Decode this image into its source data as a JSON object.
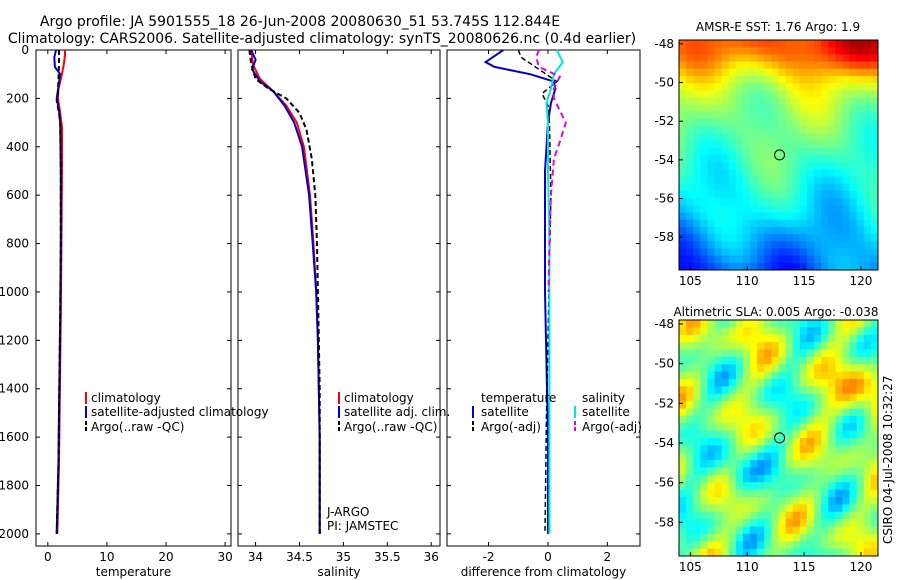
{
  "title": {
    "line1": "Argo profile: JA 5901555_18 26-Jun-2008 20080630_51 53.745S 112.844E",
    "line2": "Climatology: CARS2006. Satellite-adjusted climatology: synTS_20080626.nc (0.4d earlier)"
  },
  "footer": "CSIRO 04-Jul-2008 10:32:27",
  "colors": {
    "climatology": "#ff0000",
    "satellite": "#0000cc",
    "argo": "#000000",
    "sat_cyan": "#00e5e5",
    "argo_magenta": "#e600e6"
  },
  "chart_data": [
    {
      "type": "line",
      "name": "temperature-profile",
      "xlabel": "temperature",
      "xlim": [
        -2,
        31
      ],
      "ylim": [
        0,
        2050
      ],
      "y_reversed": true,
      "xticks": [
        "0",
        "10",
        "20",
        "30"
      ],
      "yticks": [
        "0",
        "200",
        "400",
        "600",
        "800",
        "1000",
        "1200",
        "1400",
        "1600",
        "1800",
        "2000"
      ],
      "legend": {
        "items": [
          "climatology",
          "satellite-adjusted climatology",
          "Argo(..raw -QC)"
        ]
      },
      "series": [
        {
          "name": "climatology",
          "color": "#ff0000",
          "dash": "",
          "points": [
            [
              2.9,
              0
            ],
            [
              2.9,
              20
            ],
            [
              2.7,
              60
            ],
            [
              2.3,
              110
            ],
            [
              1.8,
              160
            ],
            [
              1.7,
              200
            ],
            [
              2.1,
              260
            ],
            [
              2.4,
              320
            ],
            [
              2.4,
              500
            ],
            [
              2.3,
              800
            ],
            [
              2.2,
              1100
            ],
            [
              2.1,
              1300
            ],
            [
              2.0,
              1500
            ],
            [
              1.9,
              1700
            ],
            [
              1.7,
              1900
            ],
            [
              1.6,
              2000
            ]
          ]
        },
        {
          "name": "satellite-adjusted climatology",
          "color": "#0000cc",
          "dash": "",
          "points": [
            [
              1.4,
              0
            ],
            [
              1.1,
              30
            ],
            [
              1.2,
              70
            ],
            [
              2.1,
              100
            ],
            [
              1.8,
              150
            ],
            [
              1.5,
              200
            ],
            [
              1.9,
              250
            ],
            [
              2.1,
              300
            ],
            [
              2.2,
              500
            ],
            [
              2.2,
              800
            ],
            [
              2.1,
              1100
            ],
            [
              2.0,
              1300
            ],
            [
              1.9,
              1500
            ],
            [
              1.8,
              1700
            ],
            [
              1.6,
              1900
            ],
            [
              1.5,
              2000
            ]
          ]
        },
        {
          "name": "Argo(..raw -QC)",
          "color": "#000000",
          "dash": "5,3",
          "points": [
            [
              1.9,
              0
            ],
            [
              1.9,
              60
            ],
            [
              1.8,
              120
            ],
            [
              1.7,
              180
            ],
            [
              1.5,
              210
            ],
            [
              1.9,
              260
            ],
            [
              2.1,
              300
            ],
            [
              2.2,
              500
            ],
            [
              2.2,
              800
            ],
            [
              2.1,
              1100
            ],
            [
              2.0,
              1300
            ],
            [
              1.9,
              1500
            ],
            [
              1.8,
              1700
            ],
            [
              1.6,
              1900
            ],
            [
              1.5,
              2000
            ]
          ]
        }
      ]
    },
    {
      "type": "line",
      "name": "salinity-profile",
      "xlabel": "salinity",
      "xlim": [
        33.8,
        36.1
      ],
      "ylim": [
        0,
        2050
      ],
      "y_reversed": true,
      "xticks": [
        "34",
        "34.5",
        "35",
        "35.5",
        "36"
      ],
      "legend": {
        "items": [
          "climatology",
          "satellite adj. clim.",
          "Argo(..raw -QC)"
        ]
      },
      "annotation": [
        "J-ARGO",
        "PI: JAMSTEC"
      ],
      "series": [
        {
          "name": "climatology",
          "color": "#ff0000",
          "dash": "",
          "points": [
            [
              33.95,
              0
            ],
            [
              33.97,
              60
            ],
            [
              34.05,
              120
            ],
            [
              34.2,
              170
            ],
            [
              34.35,
              230
            ],
            [
              34.47,
              300
            ],
            [
              34.55,
              400
            ],
            [
              34.62,
              600
            ],
            [
              34.66,
              800
            ],
            [
              34.69,
              1000
            ],
            [
              34.71,
              1200
            ],
            [
              34.72,
              1400
            ],
            [
              34.73,
              1600
            ],
            [
              34.73,
              1800
            ],
            [
              34.73,
              2000
            ]
          ]
        },
        {
          "name": "satellite adj. clim.",
          "color": "#0000cc",
          "dash": "",
          "points": [
            [
              33.95,
              0
            ],
            [
              34.0,
              40
            ],
            [
              33.96,
              80
            ],
            [
              34.05,
              130
            ],
            [
              34.2,
              170
            ],
            [
              34.33,
              230
            ],
            [
              34.44,
              300
            ],
            [
              34.53,
              400
            ],
            [
              34.61,
              600
            ],
            [
              34.65,
              800
            ],
            [
              34.69,
              1000
            ],
            [
              34.71,
              1200
            ],
            [
              34.72,
              1400
            ],
            [
              34.73,
              1600
            ],
            [
              34.73,
              1800
            ],
            [
              34.73,
              2000
            ]
          ]
        },
        {
          "name": "Argo(..raw -QC)",
          "color": "#000000",
          "dash": "5,3",
          "points": [
            [
              33.93,
              0
            ],
            [
              33.95,
              60
            ],
            [
              34.0,
              120
            ],
            [
              34.15,
              160
            ],
            [
              34.35,
              200
            ],
            [
              34.5,
              260
            ],
            [
              34.58,
              330
            ],
            [
              34.64,
              450
            ],
            [
              34.68,
              600
            ],
            [
              34.7,
              800
            ],
            [
              34.71,
              1000
            ],
            [
              34.72,
              1200
            ],
            [
              34.73,
              1400
            ],
            [
              34.73,
              1600
            ],
            [
              34.73,
              1800
            ],
            [
              34.73,
              2000
            ]
          ]
        }
      ]
    },
    {
      "type": "line",
      "name": "difference-profile",
      "xlabel": "difference from climatology",
      "xlim": [
        -3.4,
        3.1
      ],
      "ylim": [
        0,
        2050
      ],
      "y_reversed": true,
      "xticks": [
        "-2",
        "0",
        "2"
      ],
      "legend": {
        "left_title": "temperature",
        "right_title": "salinity",
        "left_items": [
          "satellite",
          "Argo(-adj)"
        ],
        "right_items": [
          "satellite",
          "Argo(-adj)"
        ]
      },
      "series": [
        {
          "name": "temperature satellite",
          "color": "#0000cc",
          "dash": "",
          "width": 2,
          "points": [
            [
              -1.5,
              0
            ],
            [
              -2.1,
              50
            ],
            [
              -1.8,
              70
            ],
            [
              -0.6,
              100
            ],
            [
              0.2,
              130
            ],
            [
              0.25,
              160
            ],
            [
              0.1,
              220
            ],
            [
              0.0,
              300
            ],
            [
              -0.1,
              500
            ],
            [
              -0.1,
              800
            ],
            [
              -0.1,
              1000
            ],
            [
              -0.05,
              1300
            ],
            [
              0.0,
              1600
            ],
            [
              0.0,
              1800
            ],
            [
              0.0,
              2000
            ]
          ]
        },
        {
          "name": "temperature Argo(-adj)",
          "color": "#000000",
          "dash": "5,3",
          "width": 1.5,
          "points": [
            [
              -1.0,
              0
            ],
            [
              -0.9,
              30
            ],
            [
              -0.3,
              80
            ],
            [
              0.3,
              130
            ],
            [
              -0.2,
              180
            ],
            [
              0.0,
              230
            ],
            [
              0.05,
              300
            ],
            [
              0.1,
              600
            ],
            [
              0.05,
              900
            ],
            [
              0.0,
              1200
            ],
            [
              -0.05,
              1500
            ],
            [
              -0.08,
              1800
            ],
            [
              -0.1,
              2000
            ]
          ]
        },
        {
          "name": "salinity satellite",
          "color": "#00e5e5",
          "dash": "",
          "width": 2,
          "points": [
            [
              0.3,
              0
            ],
            [
              0.5,
              50
            ],
            [
              0.2,
              100
            ],
            [
              0.1,
              160
            ],
            [
              -0.05,
              220
            ],
            [
              0.0,
              300
            ],
            [
              0.0,
              500
            ],
            [
              0.05,
              800
            ],
            [
              0.05,
              1200
            ],
            [
              0.05,
              1600
            ],
            [
              0.05,
              2000
            ]
          ]
        },
        {
          "name": "salinity Argo(-adj)",
          "color": "#e600e6",
          "dash": "6,4",
          "width": 2,
          "points": [
            [
              -0.3,
              0
            ],
            [
              -0.4,
              30
            ],
            [
              -0.3,
              70
            ],
            [
              0.4,
              110
            ],
            [
              0.2,
              160
            ],
            [
              0.2,
              200
            ],
            [
              0.4,
              250
            ],
            [
              0.6,
              300
            ],
            [
              0.4,
              380
            ],
            [
              0.2,
              450
            ],
            [
              0.1,
              600
            ],
            [
              0.05,
              800
            ],
            [
              0.02,
              1000
            ]
          ]
        }
      ]
    },
    {
      "type": "heatmap",
      "name": "amsr-sst-map",
      "title": "AMSR-E SST: 1.76 Argo: 1.9",
      "xlim": [
        104,
        121.5
      ],
      "ylim": [
        -59.7,
        -47.8
      ],
      "xticks": [
        "105",
        "110",
        "115",
        "120"
      ],
      "yticks": [
        "-48",
        "-50",
        "-52",
        "-54",
        "-56",
        "-58"
      ],
      "marker": {
        "lon": 112.844,
        "lat": -53.745
      },
      "palette": "jet"
    },
    {
      "type": "heatmap",
      "name": "altimetric-sla-map",
      "title": "Altimetric SLA: 0.005 Argo: -0.038",
      "xlim": [
        104,
        121.5
      ],
      "ylim": [
        -59.7,
        -47.8
      ],
      "xticks": [
        "105",
        "110",
        "115",
        "120"
      ],
      "yticks": [
        "-48",
        "-50",
        "-52",
        "-54",
        "-56",
        "-58"
      ],
      "marker": {
        "lon": 112.844,
        "lat": -53.745
      },
      "palette": "jet"
    }
  ]
}
